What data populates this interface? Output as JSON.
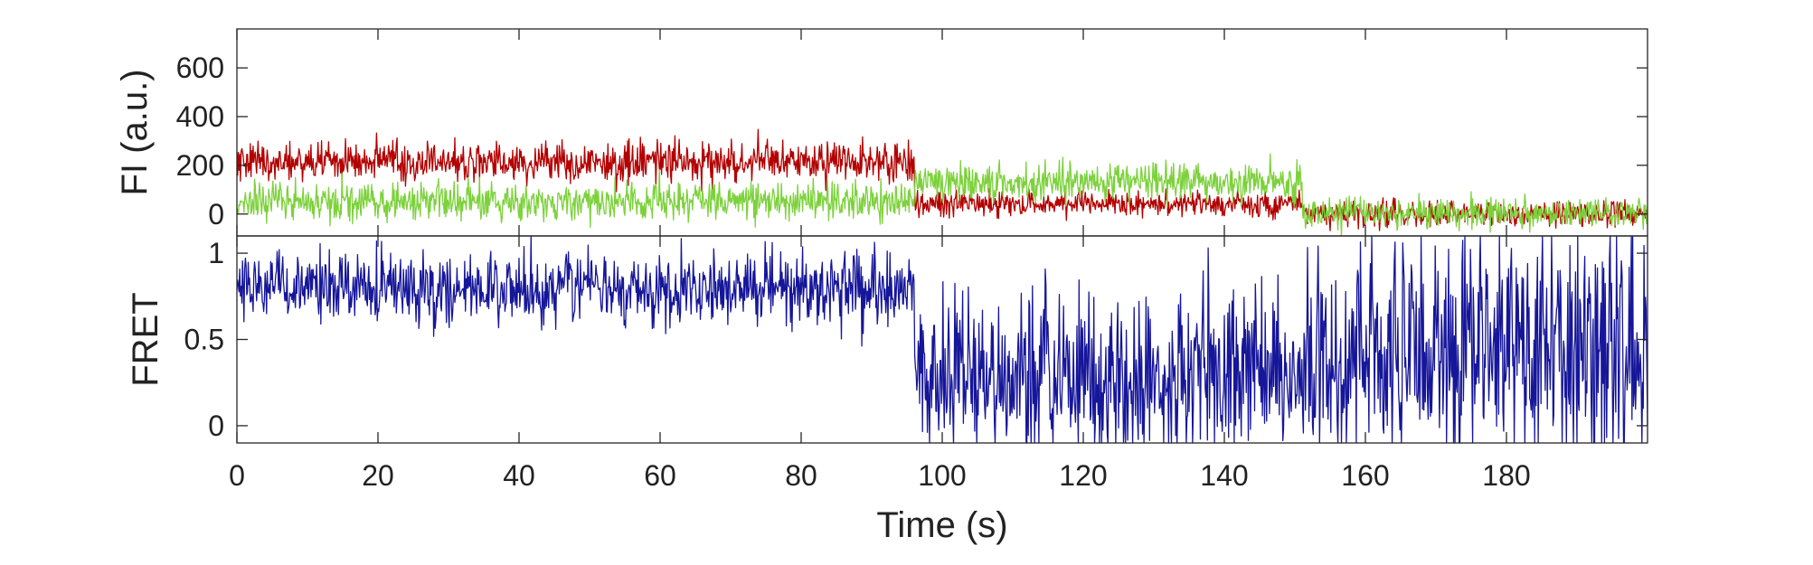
{
  "chart_data": [
    {
      "type": "line",
      "ylabel": "FI (a.u.)",
      "xlim": [
        0,
        200
      ],
      "ylim": [
        -90,
        760
      ],
      "yticks": [
        0,
        200,
        400,
        600
      ],
      "ytick_labels": [
        "0",
        "200",
        "400",
        "600"
      ],
      "series": [
        {
          "color": "#B30000",
          "segments": [
            {
              "x_start": 0,
              "x_end": 96,
              "mean": 215,
              "noise_sd": 58
            },
            {
              "x_start": 96,
              "x_end": 151,
              "mean": 40,
              "noise_sd": 38
            },
            {
              "x_start": 151,
              "x_end": 200,
              "mean": 0,
              "noise_sd": 38
            }
          ]
        },
        {
          "color": "#7DD13D",
          "segments": [
            {
              "x_start": 0,
              "x_end": 96,
              "mean": 55,
              "noise_sd": 55
            },
            {
              "x_start": 96,
              "x_end": 151,
              "mean": 130,
              "noise_sd": 55
            },
            {
              "x_start": 151,
              "x_end": 200,
              "mean": 5,
              "noise_sd": 45
            }
          ]
        }
      ],
      "grid": false
    },
    {
      "type": "line",
      "ylabel": "FRET",
      "xlabel": "Time (s)",
      "xlim": [
        0,
        200
      ],
      "ylim": [
        -0.1,
        1.1
      ],
      "yticks": [
        0,
        0.5,
        1
      ],
      "ytick_labels": [
        "0",
        "0.5",
        "1"
      ],
      "xticks": [
        0,
        20,
        40,
        60,
        80,
        100,
        120,
        140,
        160,
        180
      ],
      "xtick_labels": [
        "0",
        "20",
        "40",
        "60",
        "80",
        "100",
        "120",
        "140",
        "160",
        "180"
      ],
      "series": [
        {
          "color": "#16169A",
          "segments": [
            {
              "x_start": 0,
              "x_end": 96,
              "mean": 0.8,
              "noise_sd": 0.14
            },
            {
              "x_start": 96,
              "x_end": 151,
              "mean": 0.28,
              "noise_sd": 0.32
            },
            {
              "x_start": 151,
              "x_end": 200,
              "mean": 0.45,
              "noise_sd": 0.48
            }
          ]
        }
      ],
      "grid": false
    }
  ]
}
